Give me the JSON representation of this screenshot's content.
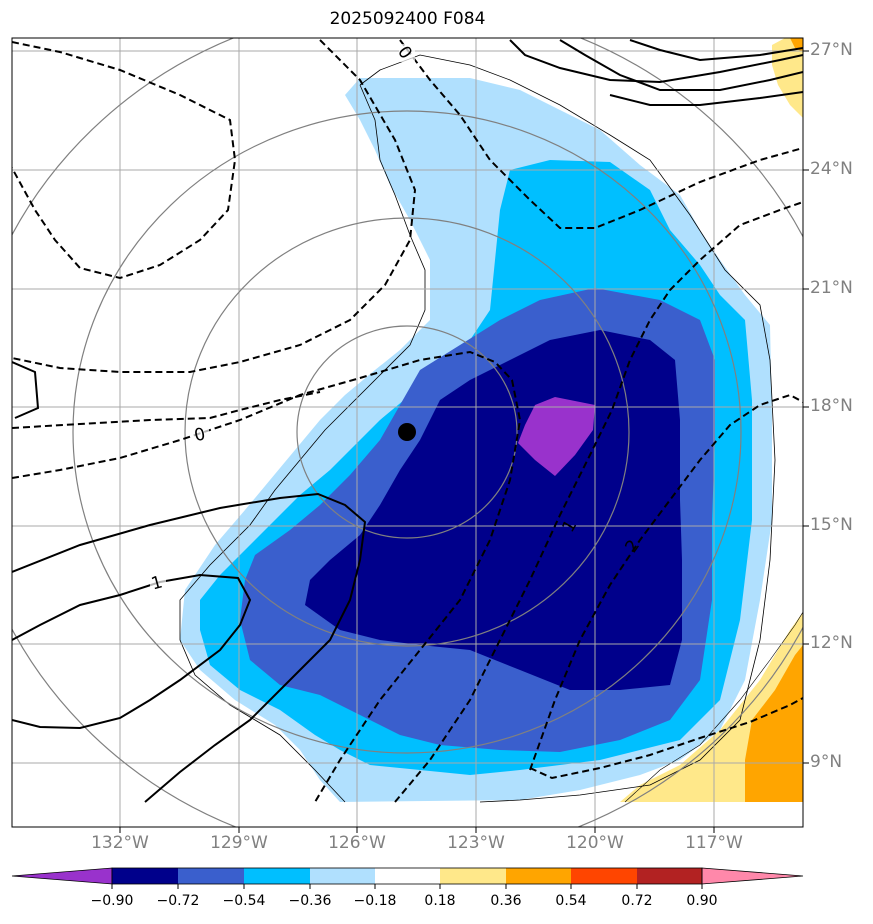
{
  "title": "2025092400 F084",
  "map": {
    "lon_labels": [
      "132°W",
      "129°W",
      "126°W",
      "123°W",
      "120°W",
      "117°W"
    ],
    "lat_labels": [
      "27°N",
      "24°N",
      "21°N",
      "18°N",
      "15°N",
      "12°N",
      "9°N"
    ],
    "contour_labels": [
      "0",
      "0",
      "1",
      "1",
      "2"
    ],
    "storm_center_marker": "filled-circle"
  },
  "colorbar": {
    "tick_labels": [
      "−0.90",
      "−0.72",
      "−0.54",
      "−0.36",
      "−0.18",
      "0.18",
      "0.36",
      "0.54",
      "0.72",
      "0.90"
    ],
    "colors": [
      "#9932cc",
      "#00008b",
      "#3a5fcd",
      "#00bfff",
      "#b0e0fe",
      "#ffffff",
      "#ffe88a",
      "#ffa500",
      "#ff4500",
      "#b22222",
      "#ff88aa"
    ]
  },
  "colors": {
    "shade_purple": "#9932cc",
    "shade_navy": "#00008b",
    "shade_royal": "#3a5fcd",
    "shade_sky": "#00bfff",
    "shade_light": "#b0e0fe",
    "shade_yellow": "#ffe88a",
    "shade_orange": "#ffa500",
    "gridline": "#a9a9a9",
    "tick_text": "#808080"
  }
}
